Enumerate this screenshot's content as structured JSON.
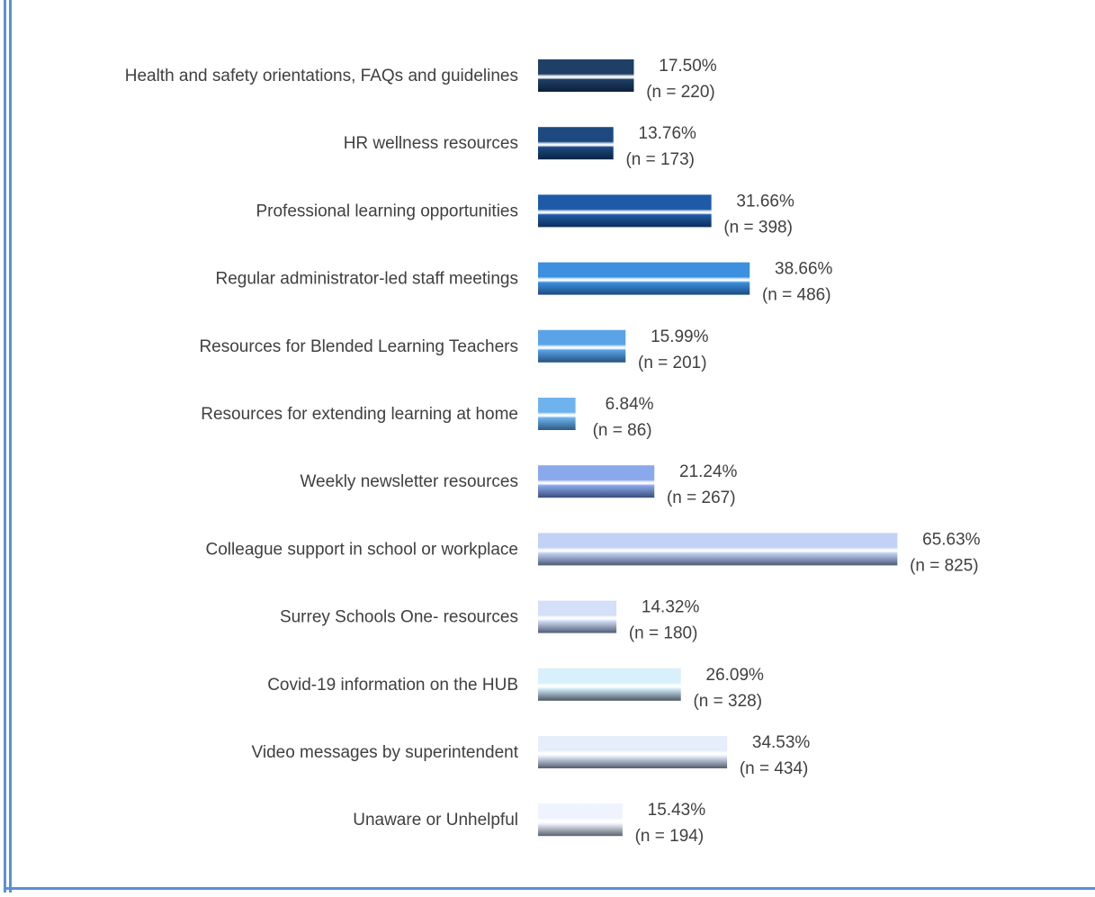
{
  "border_color": "#5b8fd6",
  "chart_data": {
    "type": "bar",
    "orientation": "horizontal",
    "title": "",
    "xlabel": "",
    "ylabel": "",
    "xlim": [
      0,
      70
    ],
    "grid": false,
    "legend": "none",
    "categories": [
      "Health and safety orientations, FAQs and guidelines",
      "HR wellness resources",
      "Professional learning opportunities",
      "Regular administrator-led staff meetings",
      "Resources for Blended Learning Teachers",
      "Resources for extending learning at home",
      "Weekly newsletter resources",
      "Colleague support in school or workplace",
      "Surrey Schools One- resources",
      "Covid-19 information on the HUB",
      "Video messages by superintendent",
      "Unaware or Unhelpful"
    ],
    "values": [
      17.5,
      13.76,
      31.66,
      38.66,
      15.99,
      6.84,
      21.24,
      65.63,
      14.32,
      26.09,
      34.53,
      15.43
    ],
    "counts": [
      220,
      173,
      398,
      486,
      201,
      86,
      267,
      825,
      180,
      328,
      434,
      194
    ],
    "value_labels": [
      "17.50%",
      "13.76%",
      "31.66%",
      "38.66%",
      "15.99%",
      "6.84%",
      "21.24%",
      "65.63%",
      "14.32%",
      "26.09%",
      "34.53%",
      "15.43%"
    ],
    "count_labels": [
      "(n = 220)",
      "(n = 173)",
      "(n = 398)",
      "(n = 486)",
      "(n = 201)",
      "(n = 86)",
      "(n = 267)",
      "(n = 825)",
      "(n = 180)",
      "(n = 328)",
      "(n = 434)",
      "(n = 194)"
    ],
    "bar_colors": [
      [
        "#1f3f66",
        "#0c1f3a"
      ],
      [
        "#1c4a80",
        "#0b2444"
      ],
      [
        "#1e5aa8",
        "#0d2e5a"
      ],
      [
        "#3d8fe0",
        "#1c4a80"
      ],
      [
        "#5aa3e8",
        "#26527d"
      ],
      [
        "#6fb3ee",
        "#2d5a82"
      ],
      [
        "#8aa8ec",
        "#3a4f7a"
      ],
      [
        "#c2d2f6",
        "#4a5a78"
      ],
      [
        "#d4e0f8",
        "#505c76"
      ],
      [
        "#d8f0fb",
        "#4a5866"
      ],
      [
        "#e6eefc",
        "#535c70"
      ],
      [
        "#eef3fd",
        "#5a6170"
      ]
    ]
  }
}
